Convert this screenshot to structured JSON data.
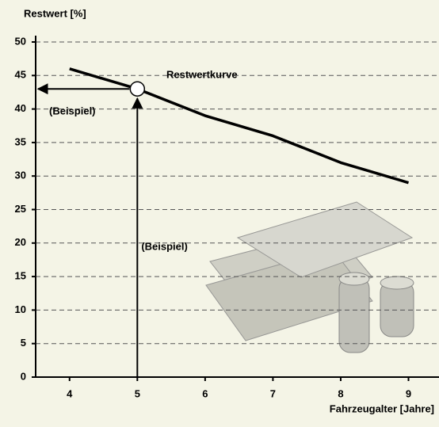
{
  "chart_data": {
    "type": "line",
    "y_label": "Restwert [%]",
    "x_label": "Fahrzeugalter [Jahre]",
    "x": [
      4,
      5,
      6,
      7,
      8,
      9
    ],
    "series": [
      {
        "name": "Restwertkurve",
        "color": "#000000",
        "values": [
          46,
          43,
          39,
          36,
          32,
          29
        ]
      }
    ],
    "xlim": [
      3.5,
      9.45
    ],
    "xticks": [
      4,
      5,
      6,
      7,
      8,
      9
    ],
    "ylim": [
      0,
      50
    ],
    "yticks": [
      0,
      5,
      10,
      15,
      20,
      25,
      30,
      35,
      40,
      45,
      50
    ],
    "grid": true,
    "example": {
      "x": 5,
      "y": 43,
      "x_label": "(Beispiel)",
      "y_label": "(Beispiel)"
    }
  }
}
